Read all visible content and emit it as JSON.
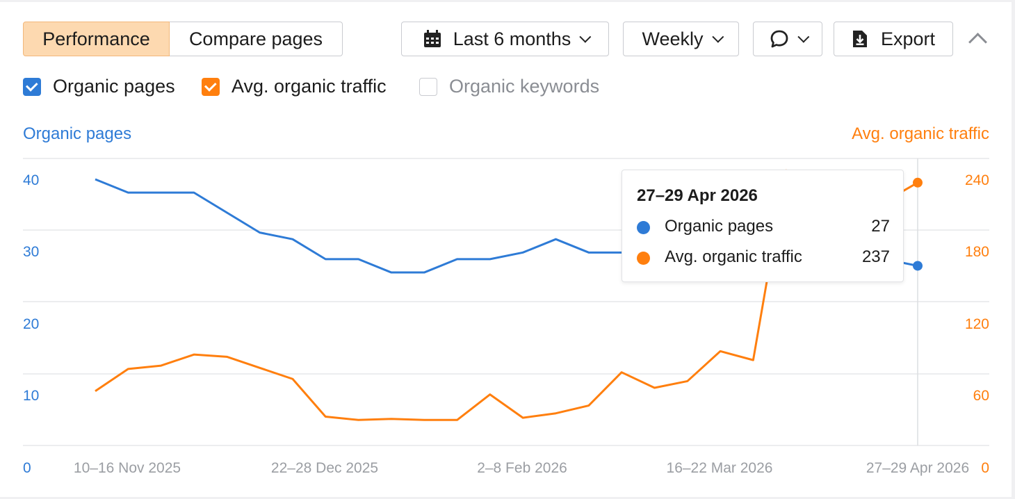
{
  "toolbar": {
    "performance_label": "Performance",
    "compare_label": "Compare pages",
    "date_range_label": "Last 6 months",
    "interval_label": "Weekly",
    "export_label": "Export"
  },
  "legend": {
    "organic_pages": {
      "label": "Organic pages",
      "checked": true
    },
    "avg_traffic": {
      "label": "Avg. organic traffic",
      "checked": true
    },
    "organic_keywords": {
      "label": "Organic keywords",
      "checked": false
    }
  },
  "colors": {
    "blue": "#2e7bd6",
    "orange": "#ff7f0e",
    "grid": "#e6e7ea",
    "tick_gray": "#9b9ea3",
    "accent_bg": "#fdd9b0"
  },
  "icons": {
    "calendar": "calendar-icon",
    "comment": "comment-icon",
    "export": "download-icon",
    "collapse": "chevron-up-icon"
  },
  "tooltip": {
    "date": "27–29 Apr 2026",
    "rows": [
      {
        "label": "Organic pages",
        "value": "27"
      },
      {
        "label": "Avg. organic traffic",
        "value": "237"
      }
    ]
  },
  "chart_data": {
    "type": "line",
    "x_tick_labels": [
      "10–16 Nov 2025",
      "22–28 Dec 2025",
      "2–8 Feb 2026",
      "16–22 Mar 2026",
      "27–29 Apr 2026"
    ],
    "left_axis": {
      "title": "Organic pages",
      "ticks": [
        "0",
        "10",
        "20",
        "30",
        "40"
      ],
      "range": [
        0,
        40
      ]
    },
    "right_axis": {
      "title": "Avg. organic traffic",
      "ticks": [
        "0",
        "60",
        "120",
        "180",
        "240"
      ],
      "range": [
        0,
        240
      ]
    },
    "grid": true,
    "series": [
      {
        "name": "Organic pages",
        "axis": "left",
        "values": [
          40,
          38,
          38,
          38,
          35,
          32,
          31,
          28,
          28,
          26,
          26,
          28,
          28,
          29,
          31,
          29,
          29,
          29,
          30,
          31,
          31,
          32,
          31,
          30,
          28,
          27
        ]
      },
      {
        "name": "Avg. organic traffic",
        "axis": "right",
        "values": [
          49,
          69,
          72,
          82,
          80,
          70,
          60,
          26,
          23,
          24,
          23,
          23,
          46,
          25,
          29,
          36,
          66,
          52,
          58,
          85,
          77,
          248,
          226,
          214,
          220,
          237
        ]
      }
    ]
  }
}
